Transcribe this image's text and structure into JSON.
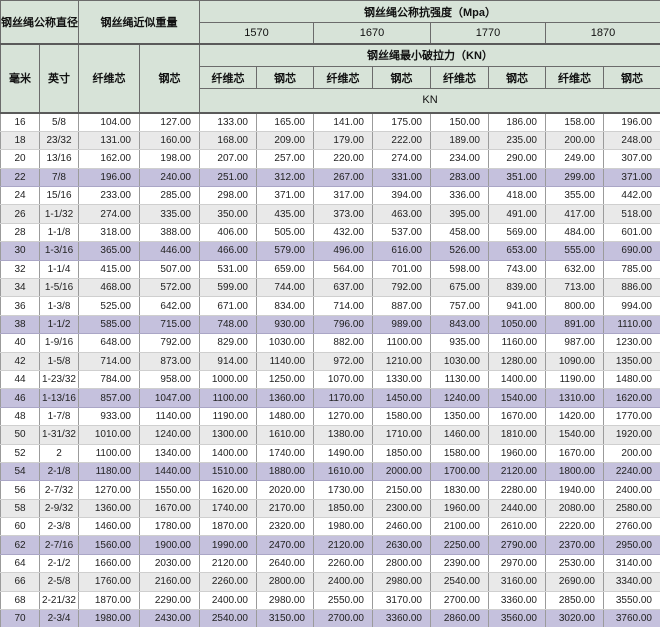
{
  "header": {
    "diameter_title": "钢丝绳公称直径",
    "weight_title": "钢丝绳近似重量",
    "strength_title": "钢丝绳公称抗强度（Mpa）",
    "strength_grades": [
      "1570",
      "1670",
      "1770",
      "1870"
    ],
    "breaking_title": "钢丝绳最小破拉力（KN）",
    "mm_label": "毫米",
    "inch_label": "英寸",
    "fiber_core_label": "纤维芯",
    "steel_core_label": "钢芯",
    "unit_label": "KN"
  },
  "colors": {
    "header_bg": "#d7e3d8",
    "row_alt_bg": "#e9e9e9",
    "row_highlight_bg": "#c5c1dd",
    "border_dark": "#5f5f5f",
    "border_mid": "#9b9b9b"
  },
  "table": {
    "rows": [
      {
        "mm": "16",
        "inch": "5/8",
        "values": [
          "104.00",
          "127.00",
          "133.00",
          "165.00",
          "141.00",
          "175.00",
          "150.00",
          "186.00",
          "158.00",
          "196.00"
        ]
      },
      {
        "mm": "18",
        "inch": "23/32",
        "values": [
          "131.00",
          "160.00",
          "168.00",
          "209.00",
          "179.00",
          "222.00",
          "189.00",
          "235.00",
          "200.00",
          "248.00"
        ]
      },
      {
        "mm": "20",
        "inch": "13/16",
        "values": [
          "162.00",
          "198.00",
          "207.00",
          "257.00",
          "220.00",
          "274.00",
          "234.00",
          "290.00",
          "249.00",
          "307.00"
        ]
      },
      {
        "mm": "22",
        "inch": "7/8",
        "values": [
          "196.00",
          "240.00",
          "251.00",
          "312.00",
          "267.00",
          "331.00",
          "283.00",
          "351.00",
          "299.00",
          "371.00"
        ]
      },
      {
        "mm": "24",
        "inch": "15/16",
        "values": [
          "233.00",
          "285.00",
          "298.00",
          "371.00",
          "317.00",
          "394.00",
          "336.00",
          "418.00",
          "355.00",
          "442.00"
        ]
      },
      {
        "mm": "26",
        "inch": "1-1/32",
        "values": [
          "274.00",
          "335.00",
          "350.00",
          "435.00",
          "373.00",
          "463.00",
          "395.00",
          "491.00",
          "417.00",
          "518.00"
        ]
      },
      {
        "mm": "28",
        "inch": "1-1/8",
        "values": [
          "318.00",
          "388.00",
          "406.00",
          "505.00",
          "432.00",
          "537.00",
          "458.00",
          "569.00",
          "484.00",
          "601.00"
        ]
      },
      {
        "mm": "30",
        "inch": "1-3/16",
        "values": [
          "365.00",
          "446.00",
          "466.00",
          "579.00",
          "496.00",
          "616.00",
          "526.00",
          "653.00",
          "555.00",
          "690.00"
        ]
      },
      {
        "mm": "32",
        "inch": "1-1/4",
        "values": [
          "415.00",
          "507.00",
          "531.00",
          "659.00",
          "564.00",
          "701.00",
          "598.00",
          "743.00",
          "632.00",
          "785.00"
        ]
      },
      {
        "mm": "34",
        "inch": "1-5/16",
        "values": [
          "468.00",
          "572.00",
          "599.00",
          "744.00",
          "637.00",
          "792.00",
          "675.00",
          "839.00",
          "713.00",
          "886.00"
        ]
      },
      {
        "mm": "36",
        "inch": "1-3/8",
        "values": [
          "525.00",
          "642.00",
          "671.00",
          "834.00",
          "714.00",
          "887.00",
          "757.00",
          "941.00",
          "800.00",
          "994.00"
        ]
      },
      {
        "mm": "38",
        "inch": "1-1/2",
        "values": [
          "585.00",
          "715.00",
          "748.00",
          "930.00",
          "796.00",
          "989.00",
          "843.00",
          "1050.00",
          "891.00",
          "1110.00"
        ]
      },
      {
        "mm": "40",
        "inch": "1-9/16",
        "values": [
          "648.00",
          "792.00",
          "829.00",
          "1030.00",
          "882.00",
          "1100.00",
          "935.00",
          "1160.00",
          "987.00",
          "1230.00"
        ]
      },
      {
        "mm": "42",
        "inch": "1-5/8",
        "values": [
          "714.00",
          "873.00",
          "914.00",
          "1140.00",
          "972.00",
          "1210.00",
          "1030.00",
          "1280.00",
          "1090.00",
          "1350.00"
        ]
      },
      {
        "mm": "44",
        "inch": "1-23/32",
        "values": [
          "784.00",
          "958.00",
          "1000.00",
          "1250.00",
          "1070.00",
          "1330.00",
          "1130.00",
          "1400.00",
          "1190.00",
          "1480.00"
        ]
      },
      {
        "mm": "46",
        "inch": "1-13/16",
        "values": [
          "857.00",
          "1047.00",
          "1100.00",
          "1360.00",
          "1170.00",
          "1450.00",
          "1240.00",
          "1540.00",
          "1310.00",
          "1620.00"
        ]
      },
      {
        "mm": "48",
        "inch": "1-7/8",
        "values": [
          "933.00",
          "1140.00",
          "1190.00",
          "1480.00",
          "1270.00",
          "1580.00",
          "1350.00",
          "1670.00",
          "1420.00",
          "1770.00"
        ]
      },
      {
        "mm": "50",
        "inch": "1-31/32",
        "values": [
          "1010.00",
          "1240.00",
          "1300.00",
          "1610.00",
          "1380.00",
          "1710.00",
          "1460.00",
          "1810.00",
          "1540.00",
          "1920.00"
        ]
      },
      {
        "mm": "52",
        "inch": "2",
        "values": [
          "1100.00",
          "1340.00",
          "1400.00",
          "1740.00",
          "1490.00",
          "1850.00",
          "1580.00",
          "1960.00",
          "1670.00",
          "200.00"
        ]
      },
      {
        "mm": "54",
        "inch": "2-1/8",
        "values": [
          "1180.00",
          "1440.00",
          "1510.00",
          "1880.00",
          "1610.00",
          "2000.00",
          "1700.00",
          "2120.00",
          "1800.00",
          "2240.00"
        ]
      },
      {
        "mm": "56",
        "inch": "2-7/32",
        "values": [
          "1270.00",
          "1550.00",
          "1620.00",
          "2020.00",
          "1730.00",
          "2150.00",
          "1830.00",
          "2280.00",
          "1940.00",
          "2400.00"
        ]
      },
      {
        "mm": "58",
        "inch": "2-9/32",
        "values": [
          "1360.00",
          "1670.00",
          "1740.00",
          "2170.00",
          "1850.00",
          "2300.00",
          "1960.00",
          "2440.00",
          "2080.00",
          "2580.00"
        ]
      },
      {
        "mm": "60",
        "inch": "2-3/8",
        "values": [
          "1460.00",
          "1780.00",
          "1870.00",
          "2320.00",
          "1980.00",
          "2460.00",
          "2100.00",
          "2610.00",
          "2220.00",
          "2760.00"
        ]
      },
      {
        "mm": "62",
        "inch": "2-7/16",
        "values": [
          "1560.00",
          "1900.00",
          "1990.00",
          "2470.00",
          "2120.00",
          "2630.00",
          "2250.00",
          "2790.00",
          "2370.00",
          "2950.00"
        ]
      },
      {
        "mm": "64",
        "inch": "2-1/2",
        "values": [
          "1660.00",
          "2030.00",
          "2120.00",
          "2640.00",
          "2260.00",
          "2800.00",
          "2390.00",
          "2970.00",
          "2530.00",
          "3140.00"
        ]
      },
      {
        "mm": "66",
        "inch": "2-5/8",
        "values": [
          "1760.00",
          "2160.00",
          "2260.00",
          "2800.00",
          "2400.00",
          "2980.00",
          "2540.00",
          "3160.00",
          "2690.00",
          "3340.00"
        ]
      },
      {
        "mm": "68",
        "inch": "2-21/32",
        "values": [
          "1870.00",
          "2290.00",
          "2400.00",
          "2980.00",
          "2550.00",
          "3170.00",
          "2700.00",
          "3360.00",
          "2850.00",
          "3550.00"
        ]
      },
      {
        "mm": "70",
        "inch": "2-3/4",
        "values": [
          "1980.00",
          "2430.00",
          "2540.00",
          "3150.00",
          "2700.00",
          "3360.00",
          "2860.00",
          "3560.00",
          "3020.00",
          "3760.00"
        ]
      }
    ]
  }
}
